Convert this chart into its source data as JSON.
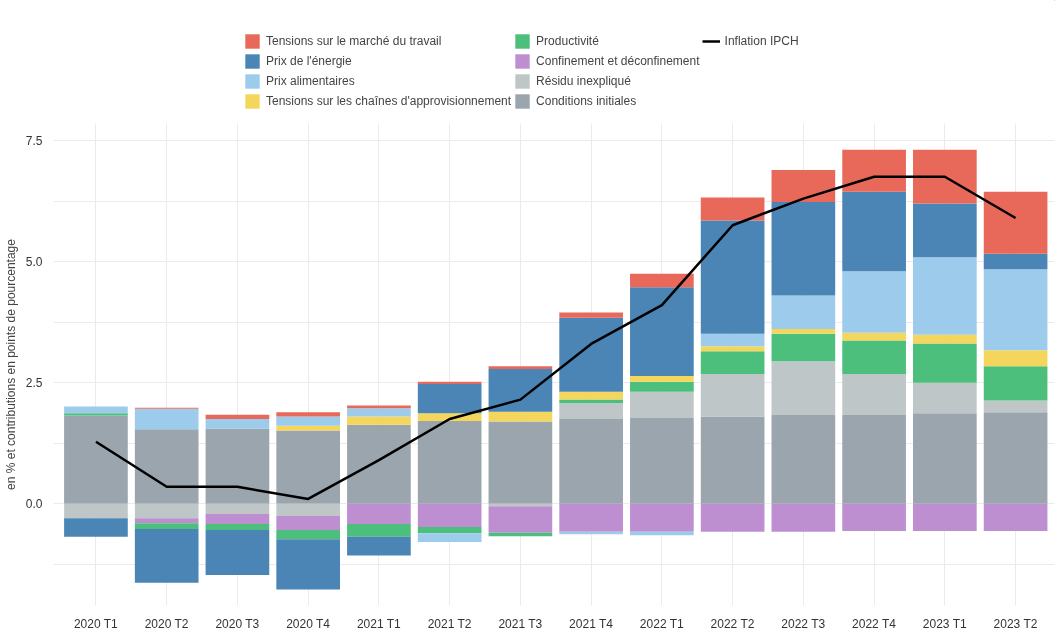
{
  "chart_data": {
    "type": "bar",
    "stacked": true,
    "ylabel": "en % et contributions en points de pourcentage",
    "categories": [
      "2020 T1",
      "2020 T2",
      "2020 T3",
      "2020 T4",
      "2021 T1",
      "2021 T2",
      "2021 T3",
      "2021 T4",
      "2022 T1",
      "2022 T2",
      "2022 T3",
      "2022 T4",
      "2023 T1",
      "2023 T2"
    ],
    "series": [
      {
        "name": "Conditions initiales",
        "color": "#9aa5ae",
        "values": [
          1.82,
          1.54,
          1.55,
          1.51,
          1.63,
          1.71,
          1.7,
          1.75,
          1.77,
          1.8,
          1.83,
          1.83,
          1.87,
          1.89
        ]
      },
      {
        "name": "Résidu inexpliqué",
        "color": "#bfc6c8",
        "values": [
          -0.3,
          -0.3,
          -0.21,
          -0.25,
          0,
          0,
          -0.05,
          0.33,
          0.54,
          0.88,
          1.11,
          0.85,
          0.63,
          0.24
        ]
      },
      {
        "name": "Confinement et déconfinement",
        "color": "#bd8fd1",
        "values": [
          0,
          -0.1,
          -0.21,
          -0.29,
          -0.42,
          -0.48,
          -0.55,
          -0.58,
          -0.58,
          -0.58,
          -0.58,
          -0.56,
          -0.56,
          -0.56
        ]
      },
      {
        "name": "Productivité",
        "color": "#4bbf7b",
        "values": [
          0.05,
          -0.12,
          -0.12,
          -0.19,
          -0.26,
          -0.13,
          -0.07,
          0.07,
          0.21,
          0.47,
          0.57,
          0.69,
          0.81,
          0.71
        ]
      },
      {
        "name": "Tensions sur les chaînes d'approvisionnement",
        "color": "#f5d65c",
        "values": [
          0,
          0,
          0,
          0.1,
          0.17,
          0.16,
          0.2,
          0.16,
          0.12,
          0.1,
          0.1,
          0.16,
          0.18,
          0.33
        ]
      },
      {
        "name": "Prix alimentaires",
        "color": "#9ccbeb",
        "values": [
          0.14,
          0.42,
          0.2,
          0.19,
          0.17,
          -0.18,
          0,
          -0.05,
          -0.07,
          0.26,
          0.69,
          1.27,
          1.6,
          1.67
        ]
      },
      {
        "name": "Prix de l'énergie",
        "color": "#4a85b5",
        "values": [
          -0.38,
          -1.11,
          -0.93,
          -1.04,
          -0.39,
          0.6,
          0.88,
          1.53,
          1.83,
          2.34,
          1.93,
          1.64,
          1.11,
          0.32
        ]
      },
      {
        "name": "Tensions sur le marché du travail",
        "color": "#e8695a",
        "values": [
          0,
          0.02,
          0.09,
          0.09,
          0.06,
          0.05,
          0.06,
          0.11,
          0.28,
          0.47,
          0.66,
          0.87,
          1.11,
          1.28
        ]
      },
      {
        "name": "Inflation IPCH",
        "type": "line",
        "color": "#000000",
        "values": [
          1.28,
          0.35,
          0.35,
          0.1,
          0.9,
          1.75,
          2.15,
          3.3,
          4.1,
          5.75,
          6.3,
          6.75,
          6.75,
          5.9
        ]
      }
    ],
    "ylim": [
      -2.1,
      7.85
    ],
    "yticks": [
      {
        "value": -1.25,
        "label": null
      },
      {
        "value": 0,
        "label": "0.0"
      },
      {
        "value": 1.25,
        "label": null
      },
      2.5,
      {
        "value": 3.75,
        "label": null
      },
      {
        "value": 5,
        "label": "5.0"
      },
      {
        "value": 6.25,
        "label": null
      },
      7.5
    ],
    "grid": true,
    "legend": "top"
  }
}
